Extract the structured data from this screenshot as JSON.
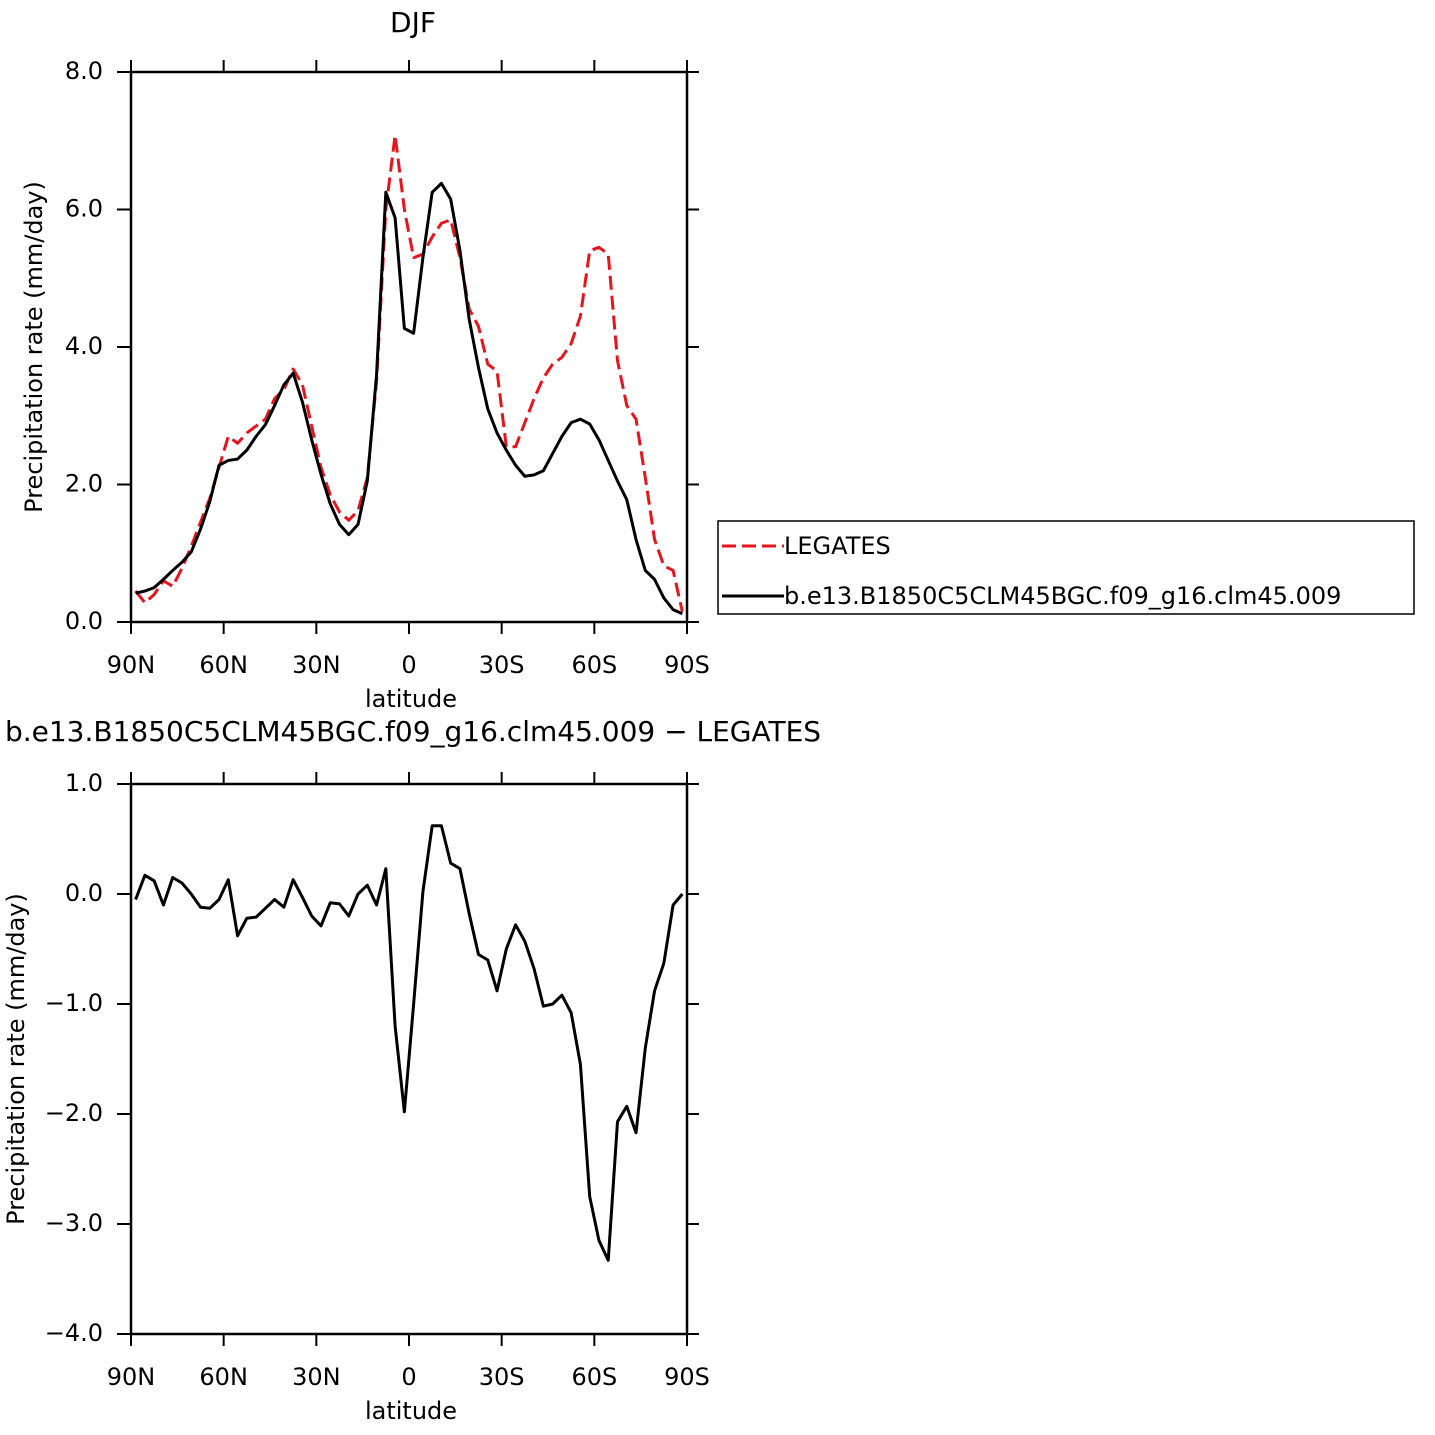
{
  "chart_data": [
    {
      "type": "line",
      "title": "DJF",
      "xlabel": "latitude",
      "ylabel": "Precipitation rate (mm/day)",
      "x": [
        88.5,
        85.5,
        82.5,
        79.5,
        76.5,
        73.5,
        70.5,
        67.5,
        64.5,
        61.5,
        58.5,
        55.5,
        52.5,
        49.5,
        46.5,
        43.5,
        40.5,
        37.5,
        34.5,
        31.5,
        28.5,
        25.5,
        22.5,
        19.5,
        16.5,
        13.5,
        10.5,
        7.5,
        4.5,
        1.5,
        -1.5,
        -4.5,
        -7.5,
        -10.5,
        -13.5,
        -16.5,
        -19.5,
        -22.5,
        -25.5,
        -28.5,
        -31.5,
        -34.5,
        -37.5,
        -40.5,
        -43.5,
        -46.5,
        -49.5,
        -52.5,
        -55.5,
        -58.5,
        -61.5,
        -64.5,
        -67.5,
        -70.5,
        -73.5,
        -76.5,
        -79.5,
        -82.5,
        -85.5,
        -88.5
      ],
      "series": [
        {
          "name": "LEGATES",
          "color": "#e8141c",
          "line_style": "dashed",
          "values": [
            0.45,
            0.28,
            0.4,
            0.6,
            0.52,
            0.78,
            1.1,
            1.45,
            1.8,
            2.25,
            2.7,
            2.6,
            2.75,
            2.85,
            2.95,
            3.25,
            3.38,
            3.68,
            3.45,
            2.85,
            2.25,
            1.85,
            1.6,
            1.48,
            1.62,
            2.1,
            3.5,
            6.0,
            7.08,
            6.0,
            5.3,
            5.35,
            5.6,
            5.8,
            5.85,
            5.3,
            4.55,
            4.3,
            3.75,
            3.65,
            2.55,
            2.55,
            2.9,
            3.25,
            3.55,
            3.75,
            3.85,
            4.05,
            4.45,
            5.4,
            5.45,
            5.35,
            3.8,
            3.15,
            2.95,
            2.1,
            1.2,
            0.82,
            0.75,
            0.15
          ]
        },
        {
          "name": "b.e13.B1850C5CLM45BGC.f09_g16.clm45.009",
          "color": "#000000",
          "line_style": "solid",
          "values": [
            0.42,
            0.45,
            0.5,
            0.62,
            0.75,
            0.87,
            1.02,
            1.35,
            1.75,
            2.28,
            2.35,
            2.37,
            2.5,
            2.7,
            2.87,
            3.15,
            3.45,
            3.62,
            3.2,
            2.65,
            2.15,
            1.72,
            1.42,
            1.27,
            1.42,
            2.05,
            3.6,
            6.25,
            5.88,
            4.27,
            4.2,
            5.3,
            6.25,
            6.38,
            6.15,
            5.4,
            4.4,
            3.7,
            3.1,
            2.75,
            2.5,
            2.28,
            2.12,
            2.14,
            2.2,
            2.45,
            2.7,
            2.9,
            2.95,
            2.88,
            2.65,
            2.35,
            2.05,
            1.78,
            1.2,
            0.75,
            0.62,
            0.35,
            0.18,
            0.12
          ]
        }
      ],
      "xlim": [
        90,
        -90
      ],
      "xticks": [
        {
          "value": 90,
          "label": "90N"
        },
        {
          "value": 60,
          "label": "60N"
        },
        {
          "value": 30,
          "label": "30N"
        },
        0,
        {
          "value": -30,
          "label": "30S"
        },
        {
          "value": -60,
          "label": "60S"
        },
        {
          "value": -90,
          "label": "90S"
        }
      ],
      "ylim": [
        0,
        8
      ],
      "yticks": [
        {
          "value": 0,
          "label": "0.0"
        },
        {
          "value": 2,
          "label": "2.0"
        },
        {
          "value": 4,
          "label": "4.0"
        },
        {
          "value": 6,
          "label": "6.0"
        },
        {
          "value": 8,
          "label": "8.0"
        }
      ],
      "legend": "right"
    },
    {
      "type": "line",
      "title": "b.e13.B1850C5CLM45BGC.f09_g16.clm45.009 − LEGATES",
      "xlabel": "latitude",
      "ylabel": "Precipitation rate (mm/day)",
      "x": [
        88.5,
        85.5,
        82.5,
        79.5,
        76.5,
        73.5,
        70.5,
        67.5,
        64.5,
        61.5,
        58.5,
        55.5,
        52.5,
        49.5,
        46.5,
        43.5,
        40.5,
        37.5,
        34.5,
        31.5,
        28.5,
        25.5,
        22.5,
        19.5,
        16.5,
        13.5,
        10.5,
        7.5,
        4.5,
        1.5,
        -1.5,
        -4.5,
        -7.5,
        -10.5,
        -13.5,
        -16.5,
        -19.5,
        -22.5,
        -25.5,
        -28.5,
        -31.5,
        -34.5,
        -37.5,
        -40.5,
        -43.5,
        -46.5,
        -49.5,
        -52.5,
        -55.5,
        -58.5,
        -61.5,
        -64.5,
        -67.5,
        -70.5,
        -73.5,
        -76.5,
        -79.5,
        -82.5,
        -85.5,
        -88.5
      ],
      "color": "#000000",
      "values": [
        -0.05,
        0.17,
        0.12,
        -0.1,
        0.15,
        0.1,
        0.0,
        -0.12,
        -0.13,
        -0.05,
        0.13,
        -0.38,
        -0.22,
        -0.21,
        -0.13,
        -0.05,
        -0.12,
        0.13,
        -0.03,
        -0.2,
        -0.29,
        -0.08,
        -0.09,
        -0.2,
        0.0,
        0.08,
        -0.1,
        0.23,
        -1.2,
        -1.98,
        -1.0,
        0.02,
        0.62,
        0.62,
        0.28,
        0.23,
        -0.18,
        -0.55,
        -0.6,
        -0.88,
        -0.5,
        -0.28,
        -0.43,
        -0.68,
        -1.02,
        -1.0,
        -0.92,
        -1.08,
        -1.55,
        -2.75,
        -3.15,
        -3.33,
        -2.07,
        -1.93,
        -2.17,
        -1.4,
        -0.88,
        -0.63,
        -0.1,
        0.0
      ],
      "xlim": [
        90,
        -90
      ],
      "xticks": [
        {
          "value": 90,
          "label": "90N"
        },
        {
          "value": 60,
          "label": "60N"
        },
        {
          "value": 30,
          "label": "30N"
        },
        0,
        {
          "value": -30,
          "label": "30S"
        },
        {
          "value": -60,
          "label": "60S"
        },
        {
          "value": -90,
          "label": "90S"
        }
      ],
      "ylim": [
        -4,
        1
      ],
      "yticks": [
        {
          "value": -4,
          "label": "−4.0"
        },
        {
          "value": -3,
          "label": "−3.0"
        },
        {
          "value": -2,
          "label": "−2.0"
        },
        {
          "value": -1,
          "label": "−1.0"
        },
        {
          "value": 0,
          "label": "0.0"
        },
        {
          "value": 1,
          "label": "1.0"
        }
      ]
    }
  ]
}
